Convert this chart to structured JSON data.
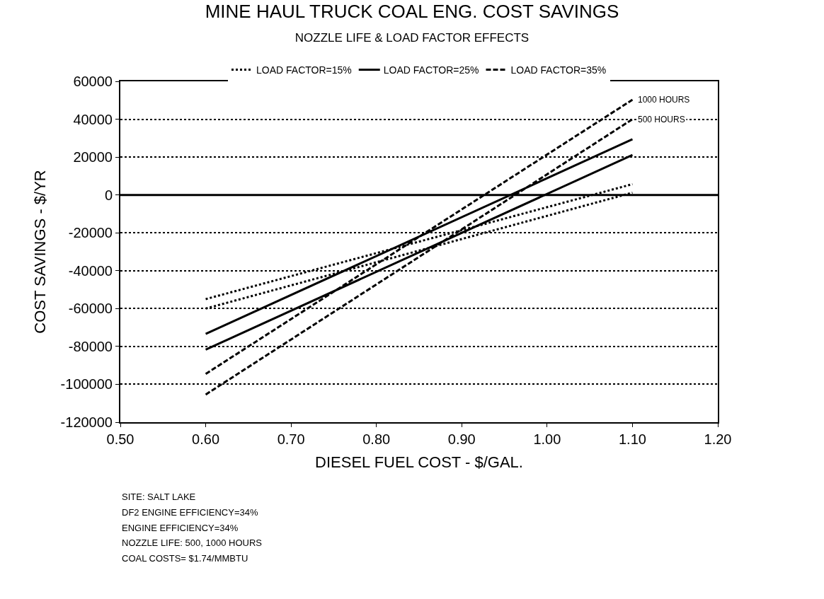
{
  "chart_data": {
    "type": "line",
    "title": "MINE HAUL TRUCK COAL ENG. COST SAVINGS",
    "subtitle": "NOZZLE LIFE & LOAD FACTOR EFFECTS",
    "xlabel": "DIESEL FUEL COST - $/GAL.",
    "ylabel": "COST SAVINGS - $/YR",
    "x": [
      0.6,
      1.1
    ],
    "series": [
      {
        "name": "LOAD FACTOR=15%",
        "color": "#000000",
        "line_style": "dotted",
        "values": [
          -55000,
          5700
        ]
      },
      {
        "color": "#000000",
        "line_style": "dotted",
        "values": [
          -60000,
          1200
        ]
      },
      {
        "name": "LOAD FACTOR=25%",
        "color": "#000000",
        "line_style": "solid",
        "values": [
          -73400,
          29400
        ]
      },
      {
        "color": "#000000",
        "line_style": "solid",
        "values": [
          -81700,
          21100
        ]
      },
      {
        "name": "LOAD FACTOR=35%",
        "color": "#000000",
        "line_style": "dashed",
        "values": [
          -94500,
          50300
        ]
      },
      {
        "color": "#000000",
        "line_style": "dashed",
        "values": [
          -105400,
          40000
        ]
      }
    ],
    "xlim": [
      0.5,
      1.2
    ],
    "xticks": [
      {
        "value": 0.5,
        "label": "0.50"
      },
      {
        "value": 0.6,
        "label": "0.60"
      },
      {
        "value": 0.7,
        "label": "0.70"
      },
      {
        "value": 0.8,
        "label": "0.80"
      },
      {
        "value": 0.9,
        "label": "0.90"
      },
      {
        "value": 1.0,
        "label": "1.00"
      },
      {
        "value": 1.1,
        "label": "1.10"
      },
      {
        "value": 1.2,
        "label": "1.20"
      }
    ],
    "ylim": [
      -120000,
      60000
    ],
    "yticks": [
      -120000,
      -100000,
      -80000,
      -60000,
      -40000,
      -20000,
      0,
      20000,
      40000,
      60000
    ],
    "grid": "y",
    "legend": "top",
    "marker": "none",
    "ref_lines": [
      {
        "axis": "y",
        "value": 0,
        "color": "#000000",
        "line_style": "solid"
      }
    ],
    "annotations": [
      {
        "text": "1000 HOURS",
        "x": 1.1,
        "y": 50300
      },
      {
        "text": "500 HOURS",
        "x": 1.1,
        "y": 40000
      },
      "SITE: SALT LAKE",
      "DF2 ENGINE EFFICIENCY=34%",
      "ENGINE EFFICIENCY=34%",
      "NOZZLE LIFE: 500, 1000 HOURS",
      "COAL COSTS= $1.74/MMBTU"
    ]
  }
}
